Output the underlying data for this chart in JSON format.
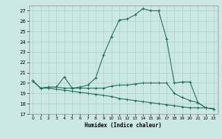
{
  "xlabel": "Humidex (Indice chaleur)",
  "bg_color": "#cce8e5",
  "grid_color": "#aacfcc",
  "line_color": "#1a6b5a",
  "xlim": [
    -0.5,
    23.5
  ],
  "ylim": [
    17,
    27.5
  ],
  "xticks": [
    0,
    1,
    2,
    3,
    4,
    5,
    6,
    7,
    8,
    9,
    10,
    11,
    12,
    13,
    14,
    15,
    16,
    17,
    18,
    19,
    20,
    21,
    22,
    23
  ],
  "yticks": [
    17,
    18,
    19,
    20,
    21,
    22,
    23,
    24,
    25,
    26,
    27
  ],
  "line1_x": [
    0,
    1,
    2,
    3,
    4,
    5,
    6,
    7,
    8,
    9,
    10,
    11,
    12,
    13,
    14,
    15,
    16,
    17,
    18,
    19,
    20,
    21,
    22,
    23
  ],
  "line1_y": [
    20.2,
    19.5,
    19.6,
    19.6,
    20.6,
    19.5,
    19.6,
    19.8,
    20.5,
    22.7,
    24.5,
    26.1,
    26.2,
    26.6,
    27.2,
    27.0,
    27.0,
    24.3,
    20.0,
    20.1,
    20.1,
    18.1,
    17.6,
    17.5
  ],
  "line2_x": [
    0,
    1,
    2,
    3,
    4,
    5,
    6,
    7,
    8,
    9,
    10,
    11,
    12,
    13,
    14,
    15,
    16,
    17,
    18,
    19,
    20,
    21,
    22,
    23
  ],
  "line2_y": [
    20.2,
    19.5,
    19.6,
    19.6,
    19.5,
    19.5,
    19.5,
    19.5,
    19.5,
    19.5,
    19.7,
    19.8,
    19.8,
    19.9,
    20.0,
    20.0,
    20.0,
    20.0,
    19.0,
    18.6,
    18.3,
    18.1,
    17.6,
    17.5
  ],
  "line3_x": [
    0,
    1,
    2,
    3,
    4,
    5,
    6,
    7,
    8,
    9,
    10,
    11,
    12,
    13,
    14,
    15,
    16,
    17,
    18,
    19,
    20,
    21,
    22,
    23
  ],
  "line3_y": [
    20.2,
    19.5,
    19.5,
    19.4,
    19.3,
    19.2,
    19.1,
    19.0,
    18.9,
    18.8,
    18.7,
    18.5,
    18.4,
    18.3,
    18.2,
    18.1,
    18.0,
    17.9,
    17.8,
    17.7,
    17.6,
    17.6,
    17.6,
    17.5
  ]
}
